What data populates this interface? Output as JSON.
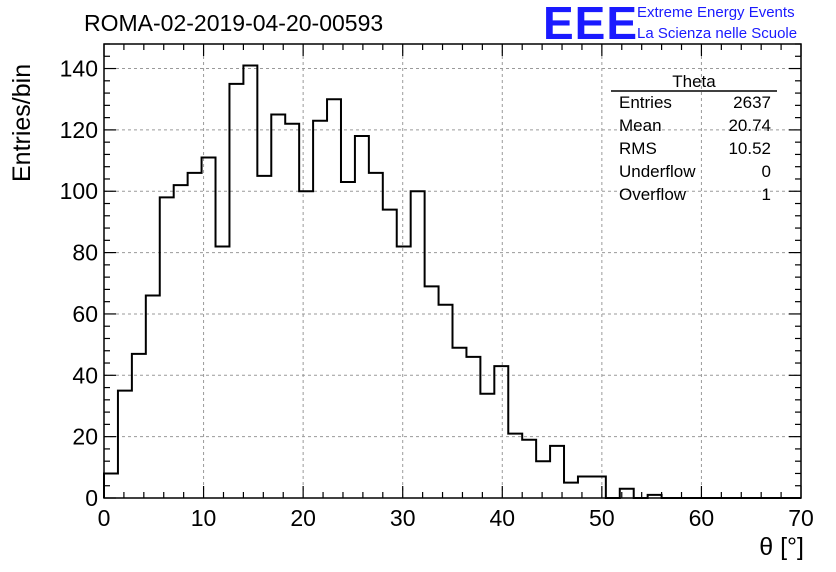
{
  "header": {
    "run_title": "ROMA-02-2019-04-20-00593",
    "logo_text": "EEE",
    "logo_line1": "Extreme Energy Events",
    "logo_line2": "La Scienza nelle Scuole",
    "logo_color": "#1a1aff"
  },
  "stats_box": {
    "title": "Theta",
    "rows": [
      {
        "label": "Entries",
        "value": "2637"
      },
      {
        "label": "Mean",
        "value": "20.74"
      },
      {
        "label": "RMS",
        "value": "10.52"
      },
      {
        "label": "Underflow",
        "value": "0"
      },
      {
        "label": "Overflow",
        "value": "1"
      }
    ]
  },
  "chart_data": {
    "type": "bar",
    "style": "step-histogram",
    "xlabel": "θ [°]",
    "ylabel": "Entries/bin",
    "xlim": [
      0,
      70
    ],
    "ylim": [
      0,
      148
    ],
    "grid": true,
    "bin_width": 1.4,
    "xticks": [
      0,
      10,
      20,
      30,
      40,
      50,
      60,
      70
    ],
    "yticks": [
      0,
      20,
      40,
      60,
      80,
      100,
      120,
      140
    ],
    "values": [
      8,
      35,
      47,
      66,
      98,
      102,
      106,
      111,
      82,
      135,
      141,
      105,
      125,
      122,
      100,
      123,
      130,
      103,
      118,
      106,
      94,
      82,
      100,
      69,
      63,
      49,
      46,
      34,
      43,
      21,
      19,
      12,
      17,
      5,
      7,
      7,
      0,
      3,
      0,
      1,
      0,
      0,
      0,
      0,
      0,
      0,
      0,
      0,
      0,
      0
    ],
    "line_color": "#000000"
  }
}
